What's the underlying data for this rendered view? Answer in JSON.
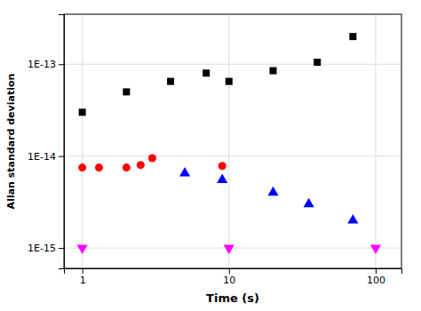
{
  "chart_data": {
    "type": "scatter",
    "log": true,
    "xlabel": "Time (s)",
    "ylabel": "Allan standard deviation",
    "xlim": [
      0.75,
      150
    ],
    "ylim": [
      6e-16,
      3.5e-13
    ],
    "xticks": [
      1,
      10,
      100
    ],
    "yticks": [
      {
        "value": 1e-15,
        "label": "1E-15"
      },
      {
        "value": 1e-14,
        "label": "1E-14"
      },
      {
        "value": 1e-13,
        "label": "1E-13"
      }
    ],
    "grid": true,
    "series": [
      {
        "color": "black",
        "marker": "square",
        "x": [
          1,
          2,
          4,
          7,
          10,
          20,
          40,
          70
        ],
        "values": [
          3e-14,
          5e-14,
          6.5e-14,
          8e-14,
          6.5e-14,
          8.5e-14,
          1.05e-13,
          2e-13
        ]
      },
      {
        "color": "red",
        "marker": "circle",
        "x": [
          1,
          1.3,
          2,
          2.5,
          3,
          9
        ],
        "values": [
          7.5e-15,
          7.5e-15,
          7.5e-15,
          8e-15,
          9.5e-15,
          7.8e-15
        ]
      },
      {
        "color": "blue",
        "marker": "triangle-up",
        "x": [
          5,
          9,
          20,
          35,
          70
        ],
        "values": [
          6.5e-15,
          5.5e-15,
          4e-15,
          3e-15,
          2e-15
        ]
      },
      {
        "color": "magenta",
        "marker": "triangle-down",
        "x": [
          1,
          10,
          100
        ],
        "values": [
          1e-15,
          1e-15,
          1e-15
        ]
      }
    ]
  }
}
